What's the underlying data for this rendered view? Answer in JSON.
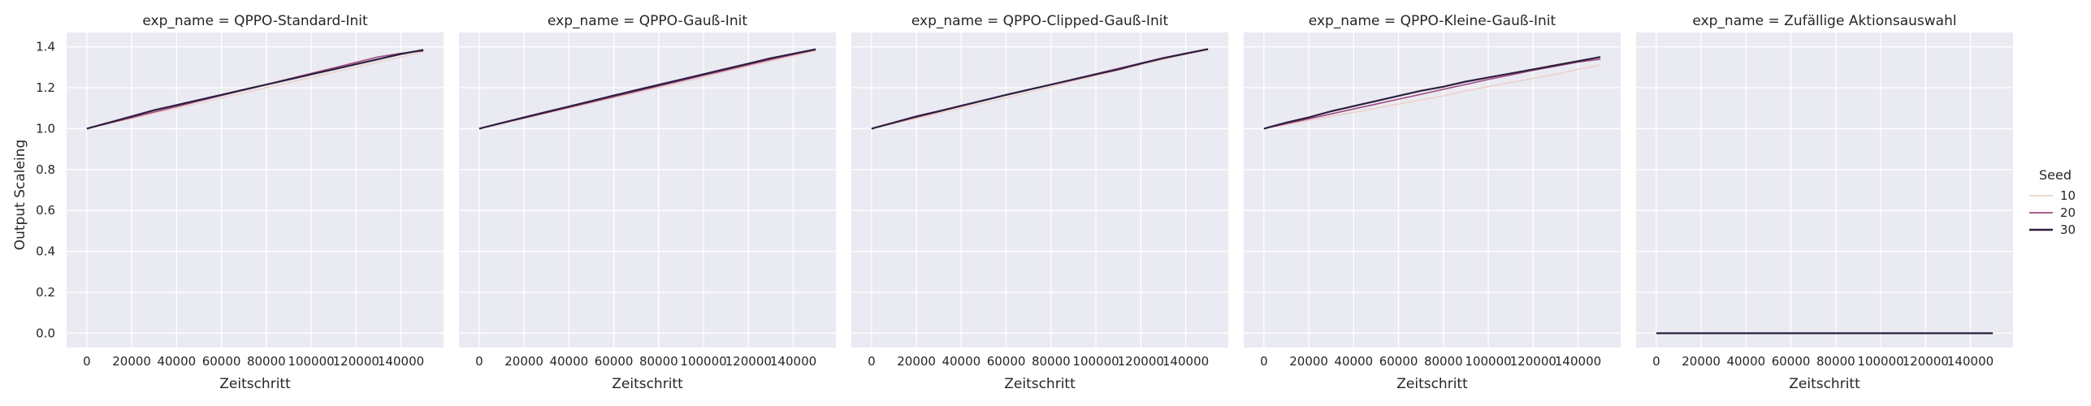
{
  "chart_data": {
    "type": "line",
    "ylabel": "Output Scaleing",
    "xlabel": "Zeitschritt",
    "xlim": [
      -9000,
      159000
    ],
    "ylim": [
      -0.07,
      1.47
    ],
    "x_ticks": [
      0,
      20000,
      40000,
      60000,
      80000,
      100000,
      120000,
      140000
    ],
    "y_ticks": [
      0.0,
      0.2,
      0.4,
      0.6,
      0.8,
      1.0,
      1.2,
      1.4
    ],
    "y_tick_labels": [
      "0.0",
      "0.2",
      "0.4",
      "0.6",
      "0.8",
      "1.0",
      "1.2",
      "1.4"
    ],
    "grid": true,
    "legend": {
      "title": "Seed",
      "placement": "right",
      "entries": [
        {
          "label": "10",
          "color": "#edd1cb"
        },
        {
          "label": "20",
          "color": "#a1487f"
        },
        {
          "label": "30",
          "color": "#2d1e3e"
        }
      ]
    },
    "x": [
      0,
      10000,
      20000,
      30000,
      40000,
      50000,
      60000,
      70000,
      80000,
      90000,
      100000,
      110000,
      120000,
      130000,
      140000,
      150000
    ],
    "panels": [
      {
        "title": "exp_name = QPPO-Standard-Init",
        "series": [
          {
            "name": "10",
            "values": [
              1.0,
              1.025,
              1.05,
              1.075,
              1.1,
              1.125,
              1.15,
              1.175,
              1.2,
              1.225,
              1.25,
              1.275,
              1.3,
              1.325,
              1.35,
              1.375
            ]
          },
          {
            "name": "20",
            "values": [
              1.0,
              1.027,
              1.054,
              1.081,
              1.108,
              1.135,
              1.162,
              1.189,
              1.216,
              1.243,
              1.27,
              1.297,
              1.324,
              1.351,
              1.368,
              1.38
            ]
          },
          {
            "name": "30",
            "values": [
              1.0,
              1.03,
              1.06,
              1.09,
              1.115,
              1.14,
              1.165,
              1.19,
              1.215,
              1.24,
              1.265,
              1.29,
              1.315,
              1.34,
              1.365,
              1.385
            ]
          }
        ]
      },
      {
        "title": "exp_name = QPPO-Gauß-Init",
        "series": [
          {
            "name": "10",
            "values": [
              1.0,
              1.025,
              1.05,
              1.075,
              1.1,
              1.125,
              1.15,
              1.175,
              1.2,
              1.225,
              1.25,
              1.28,
              1.305,
              1.33,
              1.355,
              1.38
            ]
          },
          {
            "name": "20",
            "values": [
              1.0,
              1.026,
              1.052,
              1.078,
              1.104,
              1.13,
              1.156,
              1.182,
              1.208,
              1.234,
              1.26,
              1.286,
              1.312,
              1.338,
              1.362,
              1.385
            ]
          },
          {
            "name": "30",
            "values": [
              1.0,
              1.028,
              1.055,
              1.082,
              1.108,
              1.135,
              1.162,
              1.188,
              1.214,
              1.24,
              1.266,
              1.292,
              1.318,
              1.344,
              1.366,
              1.388
            ]
          }
        ]
      },
      {
        "title": "exp_name = QPPO-Clipped-Gauß-Init",
        "series": [
          {
            "name": "10",
            "values": [
              1.0,
              1.025,
              1.05,
              1.075,
              1.1,
              1.125,
              1.15,
              1.178,
              1.205,
              1.232,
              1.258,
              1.285,
              1.312,
              1.338,
              1.362,
              1.385
            ]
          },
          {
            "name": "20",
            "values": [
              1.0,
              1.028,
              1.056,
              1.083,
              1.11,
              1.137,
              1.164,
              1.19,
              1.216,
              1.242,
              1.268,
              1.294,
              1.32,
              1.346,
              1.368,
              1.388
            ]
          },
          {
            "name": "30",
            "values": [
              1.0,
              1.03,
              1.06,
              1.085,
              1.112,
              1.138,
              1.165,
              1.19,
              1.215,
              1.24,
              1.265,
              1.29,
              1.318,
              1.344,
              1.367,
              1.389
            ]
          }
        ]
      },
      {
        "title": "exp_name = QPPO-Kleine-Gauß-Init",
        "series": [
          {
            "name": "10",
            "values": [
              1.0,
              1.02,
              1.04,
              1.06,
              1.08,
              1.1,
              1.12,
              1.14,
              1.16,
              1.185,
              1.205,
              1.225,
              1.245,
              1.265,
              1.29,
              1.31
            ]
          },
          {
            "name": "20",
            "values": [
              1.0,
              1.024,
              1.048,
              1.072,
              1.096,
              1.12,
              1.144,
              1.168,
              1.192,
              1.216,
              1.24,
              1.262,
              1.285,
              1.305,
              1.325,
              1.34
            ]
          },
          {
            "name": "30",
            "values": [
              1.0,
              1.03,
              1.055,
              1.085,
              1.11,
              1.135,
              1.16,
              1.185,
              1.205,
              1.23,
              1.25,
              1.27,
              1.29,
              1.31,
              1.33,
              1.35
            ]
          }
        ]
      },
      {
        "title": "exp_name = Zufällige Aktionsauswahl",
        "series": [
          {
            "name": "10",
            "values": [
              0.0,
              0.0,
              0.0,
              0.0,
              0.0,
              0.0,
              0.0,
              0.0,
              0.0,
              0.0,
              0.0,
              0.0,
              0.0,
              0.0,
              0.0,
              0.0
            ]
          },
          {
            "name": "20",
            "values": [
              0.0,
              0.0,
              0.0,
              0.0,
              0.0,
              0.0,
              0.0,
              0.0,
              0.0,
              0.0,
              0.0,
              0.0,
              0.0,
              0.0,
              0.0,
              0.0
            ]
          },
          {
            "name": "30",
            "values": [
              0.0,
              0.0,
              0.0,
              0.0,
              0.0,
              0.0,
              0.0,
              0.0,
              0.0,
              0.0,
              0.0,
              0.0,
              0.0,
              0.0,
              0.0,
              0.0
            ]
          }
        ]
      }
    ]
  }
}
